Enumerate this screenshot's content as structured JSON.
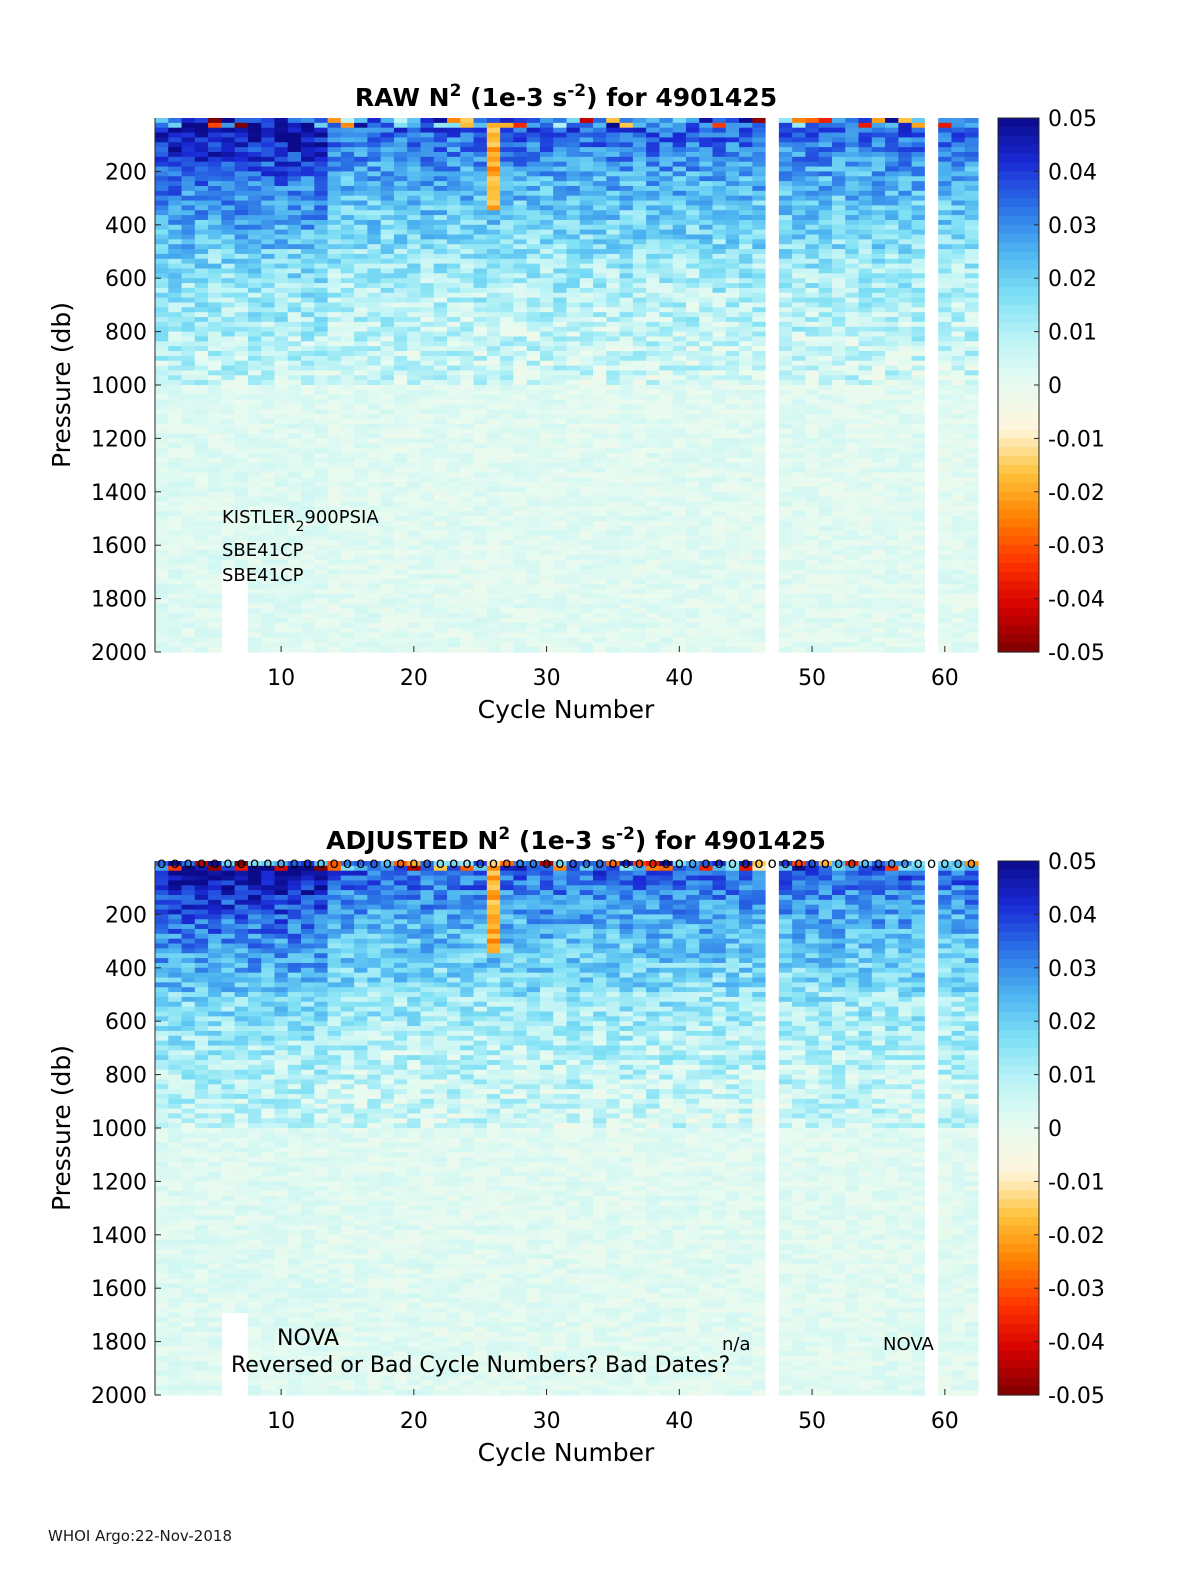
{
  "footer": "WHOI Argo:22-Nov-2018",
  "colors": {
    "colormap": [
      "#7f0000",
      "#d40000",
      "#ff3300",
      "#ff8000",
      "#ffc23a",
      "#fff5dc",
      "#e8fbf0",
      "#bff4f6",
      "#7fe0f5",
      "#4db4f0",
      "#2b72e6",
      "#1a2ad6",
      "#0a0a8a"
    ],
    "gap": "#ffffff",
    "text": "#1a1a1a"
  },
  "chart_data": [
    {
      "type": "heatmap",
      "title_main": "RAW N",
      "title_sup": "2",
      "title_mid": " (1e-3 s",
      "title_sup2": "-2",
      "title_end": ") for 4901425",
      "xlabel": "Cycle Number",
      "ylabel": "Pressure (db)",
      "xlim": [
        1,
        62
      ],
      "ylim": [
        2000,
        0
      ],
      "xticks": [
        10,
        20,
        30,
        40,
        50,
        60
      ],
      "yticks": [
        200,
        400,
        600,
        800,
        1000,
        1200,
        1400,
        1600,
        1800,
        2000
      ],
      "clim": [
        -0.05,
        0.05
      ],
      "cticks": [
        "0.05",
        "0.04",
        "0.03",
        "0.02",
        "0.01",
        "0",
        "-0.01",
        "-0.02",
        "-0.03",
        "-0.04",
        "-0.05"
      ],
      "missing_cycles": [
        47,
        59
      ],
      "annotations": {
        "sensor_main": "KISTLER",
        "sensor_sub": "2",
        "sensor_tail": "900PSIA",
        "ctd1": "SBE41CP",
        "ctd2": "SBE41CP"
      }
    },
    {
      "type": "heatmap",
      "title_main": "ADJUSTED N",
      "title_sup": "2",
      "title_mid": " (1e-3 s",
      "title_sup2": "-2",
      "title_end": ") for 4901425",
      "xlabel": "Cycle Number",
      "ylabel": "Pressure (db)",
      "xlim": [
        1,
        62
      ],
      "ylim": [
        2000,
        0
      ],
      "xticks": [
        10,
        20,
        30,
        40,
        50,
        60
      ],
      "yticks": [
        200,
        400,
        600,
        800,
        1000,
        1200,
        1400,
        1600,
        1800,
        2000
      ],
      "clim": [
        -0.05,
        0.05
      ],
      "cticks": [
        "0.05",
        "0.04",
        "0.03",
        "0.02",
        "0.01",
        "0",
        "-0.01",
        "-0.02",
        "-0.03",
        "-0.04",
        "-0.05"
      ],
      "missing_cycles": [
        47,
        59
      ],
      "qc_marker": "o",
      "annotations": {
        "nova1": "NOVA",
        "na": "n/a",
        "nova2": "NOVA",
        "reversed": "Reversed or Bad Cycle Numbers? Bad Dates?"
      }
    }
  ]
}
